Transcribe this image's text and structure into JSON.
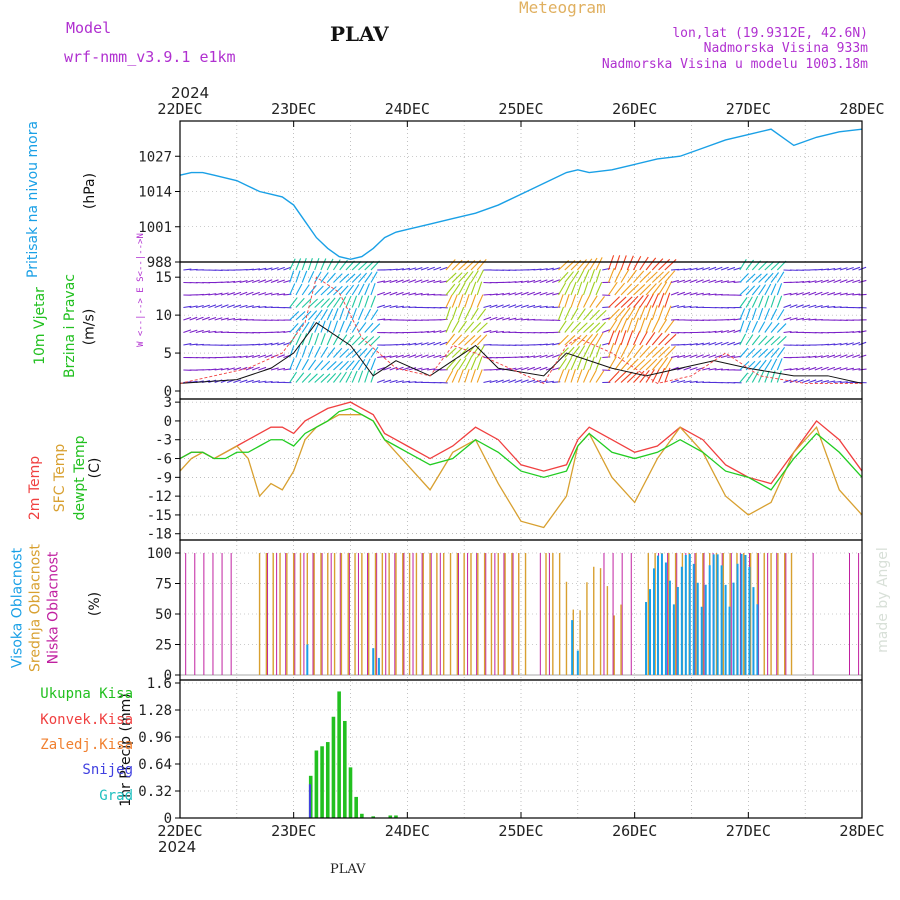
{
  "header": {
    "model_label": "Model",
    "model_name": "wrf-nmm_v3.9.1  e1km",
    "station_title": "PLAV",
    "product": "Meteogram",
    "coords": "lon,lat (19.9312E, 42.6N)",
    "elevation": "Nadmorska Visina 933m",
    "model_elevation": "Nadmorska Visina u modelu 1003.18m",
    "footer_station": "PLAV",
    "watermark": "made by Angel",
    "year": "2024"
  },
  "time_axis": {
    "labels": [
      "22DEC",
      "23DEC",
      "24DEC",
      "25DEC",
      "26DEC",
      "27DEC",
      "28DEC"
    ]
  },
  "panels": {
    "pressure": {
      "title": "Pritisak na nivou mora",
      "unit": "(hPa)",
      "ticks": [
        "988",
        "1001",
        "1014",
        "1027"
      ]
    },
    "wind": {
      "title": "10m Vjetar",
      "subtitle": "Brzina i Pravac",
      "unit": "(m/s)",
      "ticks": [
        "0",
        "5",
        "10",
        "15"
      ],
      "compass": "W <--|--> E  S<--|-->N"
    },
    "temp": {
      "title1": "2m Temp",
      "title2": "SFC Temp",
      "title3": "dewpt Temp",
      "unit": "(C)",
      "ticks": [
        "-18",
        "-15",
        "-12",
        "-9",
        "-6",
        "-3",
        "0",
        "3"
      ]
    },
    "cloud": {
      "title1": "Visoka Oblacnost",
      "title2": "Srednja Oblacnost",
      "title3": "Niska Oblacnost",
      "unit": "(%)",
      "ticks": [
        "0",
        "25",
        "50",
        "75",
        "100"
      ]
    },
    "precip": {
      "unit_label": "1hr Precip (mm)",
      "ticks": [
        "0",
        "0.32",
        "0.64",
        "0.96",
        "1.28",
        "1.6"
      ],
      "legend": [
        {
          "label": "Ukupna Kisa",
          "color": "#22c020"
        },
        {
          "label": "Konvek.Kisa",
          "color": "#f04040"
        },
        {
          "label": "Zaledj.Kisa",
          "color": "#f08030"
        },
        {
          "label": "Snijeg",
          "color": "#4040e0"
        },
        {
          "label": "Grad",
          "color": "#20c0c0"
        }
      ]
    }
  },
  "colors": {
    "pressure": "#1aa0e6",
    "t2m": "#f04040",
    "tsfc": "#d8a030",
    "dewpt": "#22cc22",
    "cloud_high": "#1aa0e6",
    "cloud_mid": "#d8a030",
    "cloud_low": "#c020a0",
    "rain": "#22c020",
    "snow": "#4040e0",
    "magenta_text": "#b030d0",
    "cyan_text": "#1aa0e6",
    "green_text": "#22c020"
  },
  "chart_data": [
    {
      "type": "line",
      "title": "Pritisak na nivou mora",
      "ylabel": "(hPa)",
      "ylim": [
        988,
        1040
      ],
      "x_days": [
        0,
        0.1,
        0.2,
        0.3,
        0.4,
        0.5,
        0.6,
        0.7,
        0.8,
        0.9,
        1.0,
        1.1,
        1.2,
        1.3,
        1.4,
        1.5,
        1.6,
        1.7,
        1.8,
        1.9,
        2.0,
        2.2,
        2.4,
        2.6,
        2.8,
        3.0,
        3.2,
        3.4,
        3.5,
        3.6,
        3.8,
        4.0,
        4.2,
        4.4,
        4.6,
        4.8,
        5.0,
        5.2,
        5.4,
        5.6,
        5.8,
        6.0
      ],
      "values": [
        1020,
        1021,
        1021,
        1020,
        1019,
        1018,
        1016,
        1014,
        1013,
        1012,
        1009,
        1003,
        997,
        993,
        990,
        989,
        990,
        993,
        997,
        999,
        1000,
        1002,
        1004,
        1006,
        1009,
        1013,
        1017,
        1021,
        1022,
        1021,
        1022,
        1024,
        1026,
        1027,
        1030,
        1033,
        1035,
        1037,
        1031,
        1034,
        1036,
        1037
      ]
    },
    {
      "type": "line",
      "title": "2m Temp / SFC Temp / dewpt Temp",
      "ylabel": "(C)",
      "ylim": [
        -19,
        3.5
      ],
      "x_days": [
        0,
        0.1,
        0.2,
        0.3,
        0.4,
        0.5,
        0.6,
        0.7,
        0.8,
        0.9,
        1.0,
        1.1,
        1.2,
        1.3,
        1.4,
        1.5,
        1.6,
        1.7,
        1.8,
        1.9,
        2.0,
        2.2,
        2.4,
        2.6,
        2.8,
        3.0,
        3.2,
        3.4,
        3.5,
        3.6,
        3.8,
        4.0,
        4.2,
        4.4,
        4.6,
        4.8,
        5.0,
        5.2,
        5.4,
        5.6,
        5.8,
        6.0
      ],
      "series": [
        {
          "name": "2m Temp",
          "values": [
            -6,
            -5,
            -5,
            -6,
            -5,
            -4,
            -3,
            -2,
            -1,
            -1,
            -2,
            0,
            1,
            2,
            2.5,
            3,
            2,
            1,
            -2,
            -3,
            -4,
            -6,
            -4,
            -1,
            -3,
            -7,
            -8,
            -7,
            -3,
            -1,
            -3,
            -5,
            -4,
            -1,
            -3,
            -7,
            -9,
            -10,
            -5,
            0,
            -3,
            -8
          ]
        },
        {
          "name": "SFC Temp",
          "values": [
            -8,
            -6,
            -5,
            -6,
            -5,
            -4,
            -6,
            -12,
            -10,
            -11,
            -8,
            -3,
            -1,
            0,
            1,
            1,
            1,
            0,
            -3,
            -5,
            -7,
            -11,
            -5,
            -3,
            -10,
            -16,
            -17,
            -12,
            -4,
            -2,
            -9,
            -13,
            -6,
            -1,
            -5,
            -12,
            -15,
            -13,
            -5,
            -1,
            -11,
            -15
          ]
        },
        {
          "name": "dewpt Temp",
          "values": [
            -6,
            -5,
            -5,
            -6,
            -6,
            -5,
            -5,
            -4,
            -3,
            -3,
            -4,
            -2,
            -1,
            0,
            1.5,
            2,
            1,
            0,
            -3,
            -4,
            -5,
            -7,
            -6,
            -3,
            -5,
            -8,
            -9,
            -8,
            -4,
            -2,
            -5,
            -6,
            -5,
            -3,
            -5,
            -8,
            -9,
            -11,
            -6,
            -2,
            -5,
            -9
          ]
        }
      ]
    },
    {
      "type": "bar",
      "title": "1hr Precip (mm)",
      "ylim": [
        0,
        1.6
      ],
      "x_days": [
        1.15,
        1.2,
        1.25,
        1.3,
        1.35,
        1.4,
        1.45,
        1.5,
        1.55,
        1.6,
        1.7,
        1.85,
        1.9
      ],
      "series": [
        {
          "name": "Ukupna Kisa",
          "values": [
            0.5,
            0.8,
            0.85,
            0.9,
            1.2,
            1.5,
            1.15,
            0.6,
            0.25,
            0.05,
            0.02,
            0.03,
            0.03
          ]
        },
        {
          "name": "Snijeg",
          "values": [
            0.4,
            0.0,
            0.0,
            0.0,
            0.0,
            0.0,
            0.0,
            0.0,
            0.0,
            0.0,
            0.0,
            0.0,
            0.0
          ]
        }
      ]
    }
  ]
}
